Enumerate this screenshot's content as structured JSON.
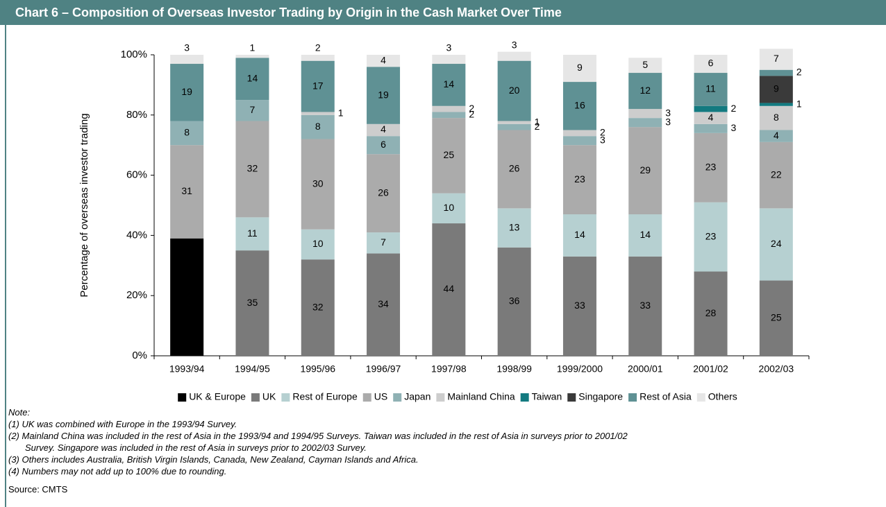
{
  "chart_data": {
    "type": "stacked_bar",
    "title": "Chart 6 – Composition of Overseas Investor Trading by Origin in the Cash Market Over Time",
    "y_label": "Percentage of overseas investor trading",
    "categories": [
      "1993/94",
      "1994/95",
      "1995/96",
      "1996/97",
      "1997/98",
      "1998/99",
      "1999/2000",
      "2000/01",
      "2001/02",
      "2002/03"
    ],
    "series": [
      {
        "name": "UK & Europe",
        "color": "#000000",
        "values": [
          39,
          null,
          null,
          null,
          null,
          null,
          null,
          null,
          null,
          null
        ]
      },
      {
        "name": "UK",
        "color": "#7a7a7a",
        "values": [
          null,
          35,
          32,
          34,
          44,
          36,
          33,
          33,
          28,
          25
        ]
      },
      {
        "name": "Rest of Europe",
        "color": "#b6d0d1",
        "values": [
          null,
          11,
          10,
          7,
          10,
          13,
          14,
          14,
          23,
          24
        ]
      },
      {
        "name": "US",
        "color": "#ababab",
        "values": [
          31,
          32,
          30,
          26,
          25,
          26,
          23,
          29,
          23,
          22
        ]
      },
      {
        "name": "Japan",
        "color": "#8fb1b4",
        "values": [
          8,
          7,
          8,
          6,
          2,
          2,
          3,
          3,
          3,
          4
        ]
      },
      {
        "name": "Mainland China",
        "color": "#cdcdcd",
        "values": [
          null,
          null,
          1,
          4,
          2,
          1,
          2,
          3,
          4,
          8
        ]
      },
      {
        "name": "Taiwan",
        "color": "#137a80",
        "values": [
          null,
          null,
          null,
          null,
          null,
          null,
          null,
          null,
          2,
          1
        ]
      },
      {
        "name": "Singapore",
        "color": "#3a3a3a",
        "values": [
          null,
          null,
          null,
          null,
          null,
          null,
          null,
          null,
          null,
          9
        ]
      },
      {
        "name": "Rest of Asia",
        "color": "#5f9194",
        "values": [
          19,
          14,
          17,
          19,
          14,
          20,
          16,
          12,
          11,
          2
        ]
      },
      {
        "name": "Others",
        "color": "#e6e6e6",
        "values": [
          3,
          1,
          2,
          4,
          3,
          3,
          9,
          5,
          6,
          7
        ]
      }
    ],
    "ylim": [
      0,
      100
    ],
    "yticks": [
      {
        "value": 0,
        "label": "0%"
      },
      {
        "value": 20,
        "label": "20%"
      },
      {
        "value": 40,
        "label": "40%"
      },
      {
        "value": 60,
        "label": "60%"
      },
      {
        "value": 80,
        "label": "80%"
      },
      {
        "value": 100,
        "label": "100%"
      }
    ],
    "legend": "bottom"
  },
  "notes": [
    "Note:",
    "(1) UK was combined with Europe in the 1993/94 Survey.",
    "(2) Mainland China was included in the rest of Asia in the 1993/94 and 1994/95 Surveys. Taiwan was included in the rest of Asia in surveys prior to 2001/02",
    "Survey. Singapore was included in the rest of Asia in surveys prior to 2002/03 Survey.",
    "(3) Others includes Australia, British Virgin Islands, Canada, New Zealand, Cayman Islands and Africa.",
    "(4) Numbers may not add up to 100% due to rounding."
  ],
  "source": "Source: CMTS"
}
